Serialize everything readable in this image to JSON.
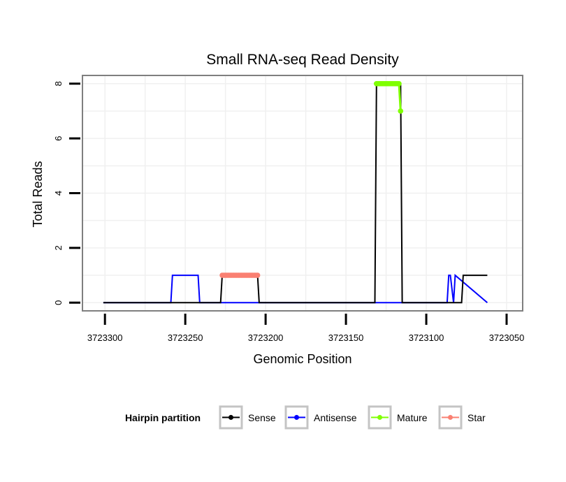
{
  "chart_data": {
    "type": "line",
    "title": "Small RNA-seq Read Density",
    "xlabel": "Genomic Position",
    "ylabel": "Total Reads",
    "x_reversed": true,
    "xlim": [
      3723314,
      3723040
    ],
    "ylim": [
      -0.3,
      8.3
    ],
    "x_ticks": [
      3723300,
      3723250,
      3723200,
      3723150,
      3723100,
      3723050
    ],
    "x_tick_labels": [
      "3723300",
      "3723250",
      "3723200",
      "3723150",
      "3723100",
      "3723050"
    ],
    "y_ticks": [
      0,
      2,
      4,
      6,
      8
    ],
    "y_tick_labels": [
      "0",
      "2",
      "4",
      "6",
      "8"
    ],
    "grid": true,
    "legend": {
      "title": "Hairpin partition",
      "placement": "bottom",
      "entries": [
        "Sense",
        "Antisense",
        "Mature",
        "Star"
      ]
    },
    "series": [
      {
        "name": "Antisense",
        "color": "#0000ff",
        "marker": false,
        "x": [
          3723301,
          3723259,
          3723258,
          3723242,
          3723241,
          3723227,
          3723226,
          3723186,
          3723185,
          3723087,
          3723086,
          3723085,
          3723083,
          3723082,
          3723062
        ],
        "y": [
          0,
          0,
          1,
          1,
          0,
          0,
          0,
          0,
          0,
          0,
          1,
          1,
          0,
          1,
          0
        ]
      },
      {
        "name": "Sense",
        "color": "#000000",
        "marker": false,
        "x": [
          3723301,
          3723228,
          3723227,
          3723205,
          3723204,
          3723132,
          3723131,
          3723116,
          3723115,
          3723078,
          3723077,
          3723062
        ],
        "y": [
          0,
          0,
          1,
          1,
          0,
          0,
          8,
          8,
          0,
          0,
          1,
          1
        ]
      },
      {
        "name": "Mature",
        "color": "#7fff00",
        "marker": true,
        "x": [
          3723131,
          3723130,
          3723129,
          3723128,
          3723127,
          3723126,
          3723125,
          3723124,
          3723123,
          3723122,
          3723121,
          3723120,
          3723119,
          3723118,
          3723117,
          3723116
        ],
        "y": [
          8,
          8,
          8,
          8,
          8,
          8,
          8,
          8,
          8,
          8,
          8,
          8,
          8,
          8,
          8,
          7
        ]
      },
      {
        "name": "Star",
        "color": "#fa8072",
        "marker": true,
        "x": [
          3723227,
          3723226,
          3723225,
          3723224,
          3723223,
          3723222,
          3723221,
          3723220,
          3723219,
          3723218,
          3723217,
          3723216,
          3723215,
          3723214,
          3723213,
          3723212,
          3723211,
          3723210,
          3723209,
          3723208,
          3723207,
          3723206,
          3723205
        ],
        "y": [
          1,
          1,
          1,
          1,
          1,
          1,
          1,
          1,
          1,
          1,
          1,
          1,
          1,
          1,
          1,
          1,
          1,
          1,
          1,
          1,
          1,
          1,
          1
        ]
      }
    ]
  }
}
